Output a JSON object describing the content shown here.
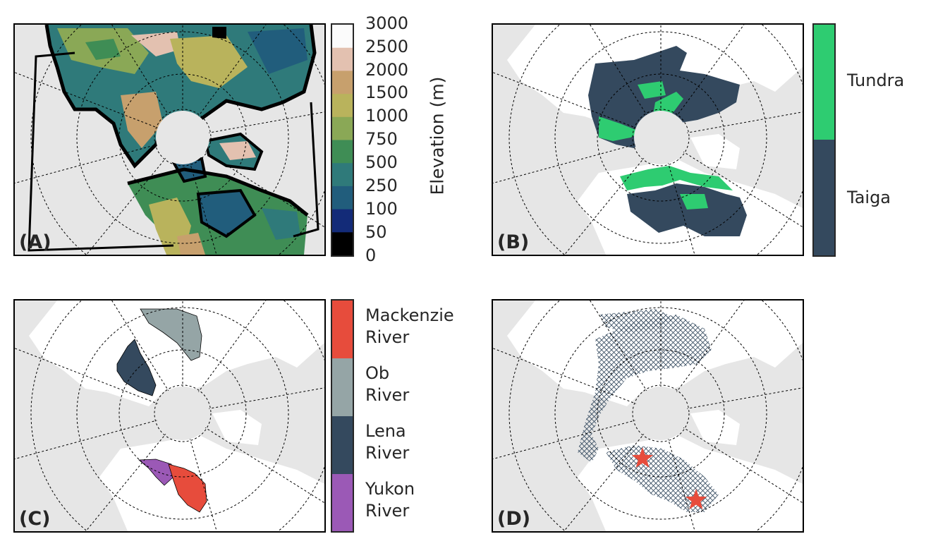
{
  "panels": {
    "a": {
      "label": "(A)"
    },
    "b": {
      "label": "(B)"
    },
    "c": {
      "label": "(C)"
    },
    "d": {
      "label": "(D)"
    }
  },
  "elevation_colorbar": {
    "title": "Elevation (m)",
    "ticks": [
      "3000",
      "2500",
      "2000",
      "1500",
      "1000",
      "750",
      "500",
      "250",
      "100",
      "50",
      "0"
    ],
    "colors": [
      "#fbfbfb",
      "#e3c1b0",
      "#c7a06d",
      "#b9b35c",
      "#8aa856",
      "#3f8d55",
      "#2f7a7a",
      "#215d7c",
      "#132b78",
      "#000000"
    ]
  },
  "biome_colorbar": {
    "classes": [
      {
        "label": "Tundra",
        "color": "#2ecc71"
      },
      {
        "label": "Taiga",
        "color": "#34495e"
      }
    ]
  },
  "river_colorbar": {
    "classes": [
      {
        "line1": "Mackenzie",
        "line2": "River",
        "color": "#e74c3c"
      },
      {
        "line1": "Ob",
        "line2": "River",
        "color": "#95a5a6"
      },
      {
        "line1": "Lena",
        "line2": "River",
        "color": "#34495e"
      },
      {
        "line1": "Yukon",
        "line2": "River",
        "color": "#9b59b6"
      }
    ]
  },
  "sites": {
    "marker": "star",
    "color": "#e74c3c",
    "count": 2
  },
  "colors": {
    "ocean": "#e6e6e6",
    "land": "#ffffff",
    "graticule": "#000000"
  }
}
